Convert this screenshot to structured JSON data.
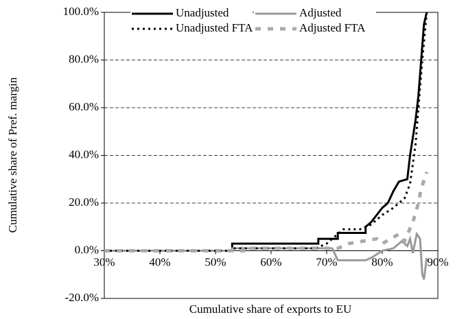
{
  "chart_data": {
    "type": "line",
    "xlabel": "Cumulative share of exports to EU",
    "ylabel": "Cumulative share of Pref. margin",
    "xlim": [
      30,
      90
    ],
    "xticks": [
      {
        "value": 30,
        "label": "30%"
      },
      {
        "value": 40,
        "label": "40%"
      },
      {
        "value": 50,
        "label": "50%"
      },
      {
        "value": 60,
        "label": "60%"
      },
      {
        "value": 70,
        "label": "70%"
      },
      {
        "value": 80,
        "label": "80%"
      },
      {
        "value": 90,
        "label": "90%"
      }
    ],
    "ylim": [
      -20,
      100
    ],
    "yticks": [
      {
        "value": -20,
        "label": "-20.0%"
      },
      {
        "value": 0,
        "label": "0.0%"
      },
      {
        "value": 20,
        "label": "20.0%"
      },
      {
        "value": 40,
        "label": "40.0%"
      },
      {
        "value": 60,
        "label": "60.0%"
      },
      {
        "value": 80,
        "label": "80.0%"
      },
      {
        "value": 100,
        "label": "100.0%"
      }
    ],
    "grid": true,
    "series": [
      {
        "name": "Unadjusted",
        "color": "#000000",
        "style": "solid",
        "x": [
          30,
          53,
          53,
          68.5,
          68.5,
          72,
          72,
          77,
          77,
          78,
          79,
          80,
          81,
          82,
          83,
          84.5,
          85,
          86,
          86.5,
          87,
          87.5,
          88
        ],
        "values": [
          0,
          0,
          3,
          3,
          5,
          5,
          7.5,
          7.5,
          10,
          12,
          15,
          18,
          20,
          25,
          29,
          30,
          40,
          55,
          65,
          80,
          95,
          100
        ]
      },
      {
        "name": "Adjusted",
        "color": "#999999",
        "style": "solid",
        "x": [
          30,
          53,
          53,
          68,
          71,
          72,
          77,
          78,
          80,
          82,
          83.5,
          84.5,
          85,
          85.5,
          86.2,
          86.8,
          87.2,
          87.5,
          88
        ],
        "values": [
          0,
          0,
          1,
          1,
          1,
          -4,
          -4,
          -3,
          0,
          1,
          4,
          2,
          5,
          -1,
          7,
          5,
          -10,
          -12,
          -3
        ]
      },
      {
        "name": "Unadjusted FTA",
        "color": "#000000",
        "style": "dotted",
        "x": [
          30,
          53,
          53,
          68,
          70,
          73,
          76,
          78,
          80,
          82,
          84,
          85,
          86,
          86.5,
          87.2,
          88
        ],
        "values": [
          0,
          0,
          1,
          1,
          3,
          9,
          9,
          11,
          15,
          18,
          22,
          28,
          45,
          60,
          80,
          100
        ]
      },
      {
        "name": "Adjusted FTA",
        "color": "#aaaaaa",
        "style": "dashed",
        "x": [
          30,
          55,
          55,
          72,
          74,
          79,
          80,
          83,
          84,
          85.5,
          86.5,
          87,
          88
        ],
        "values": [
          0,
          0,
          1,
          1,
          3,
          5,
          3,
          7,
          4,
          12,
          20,
          26,
          33
        ]
      }
    ]
  }
}
